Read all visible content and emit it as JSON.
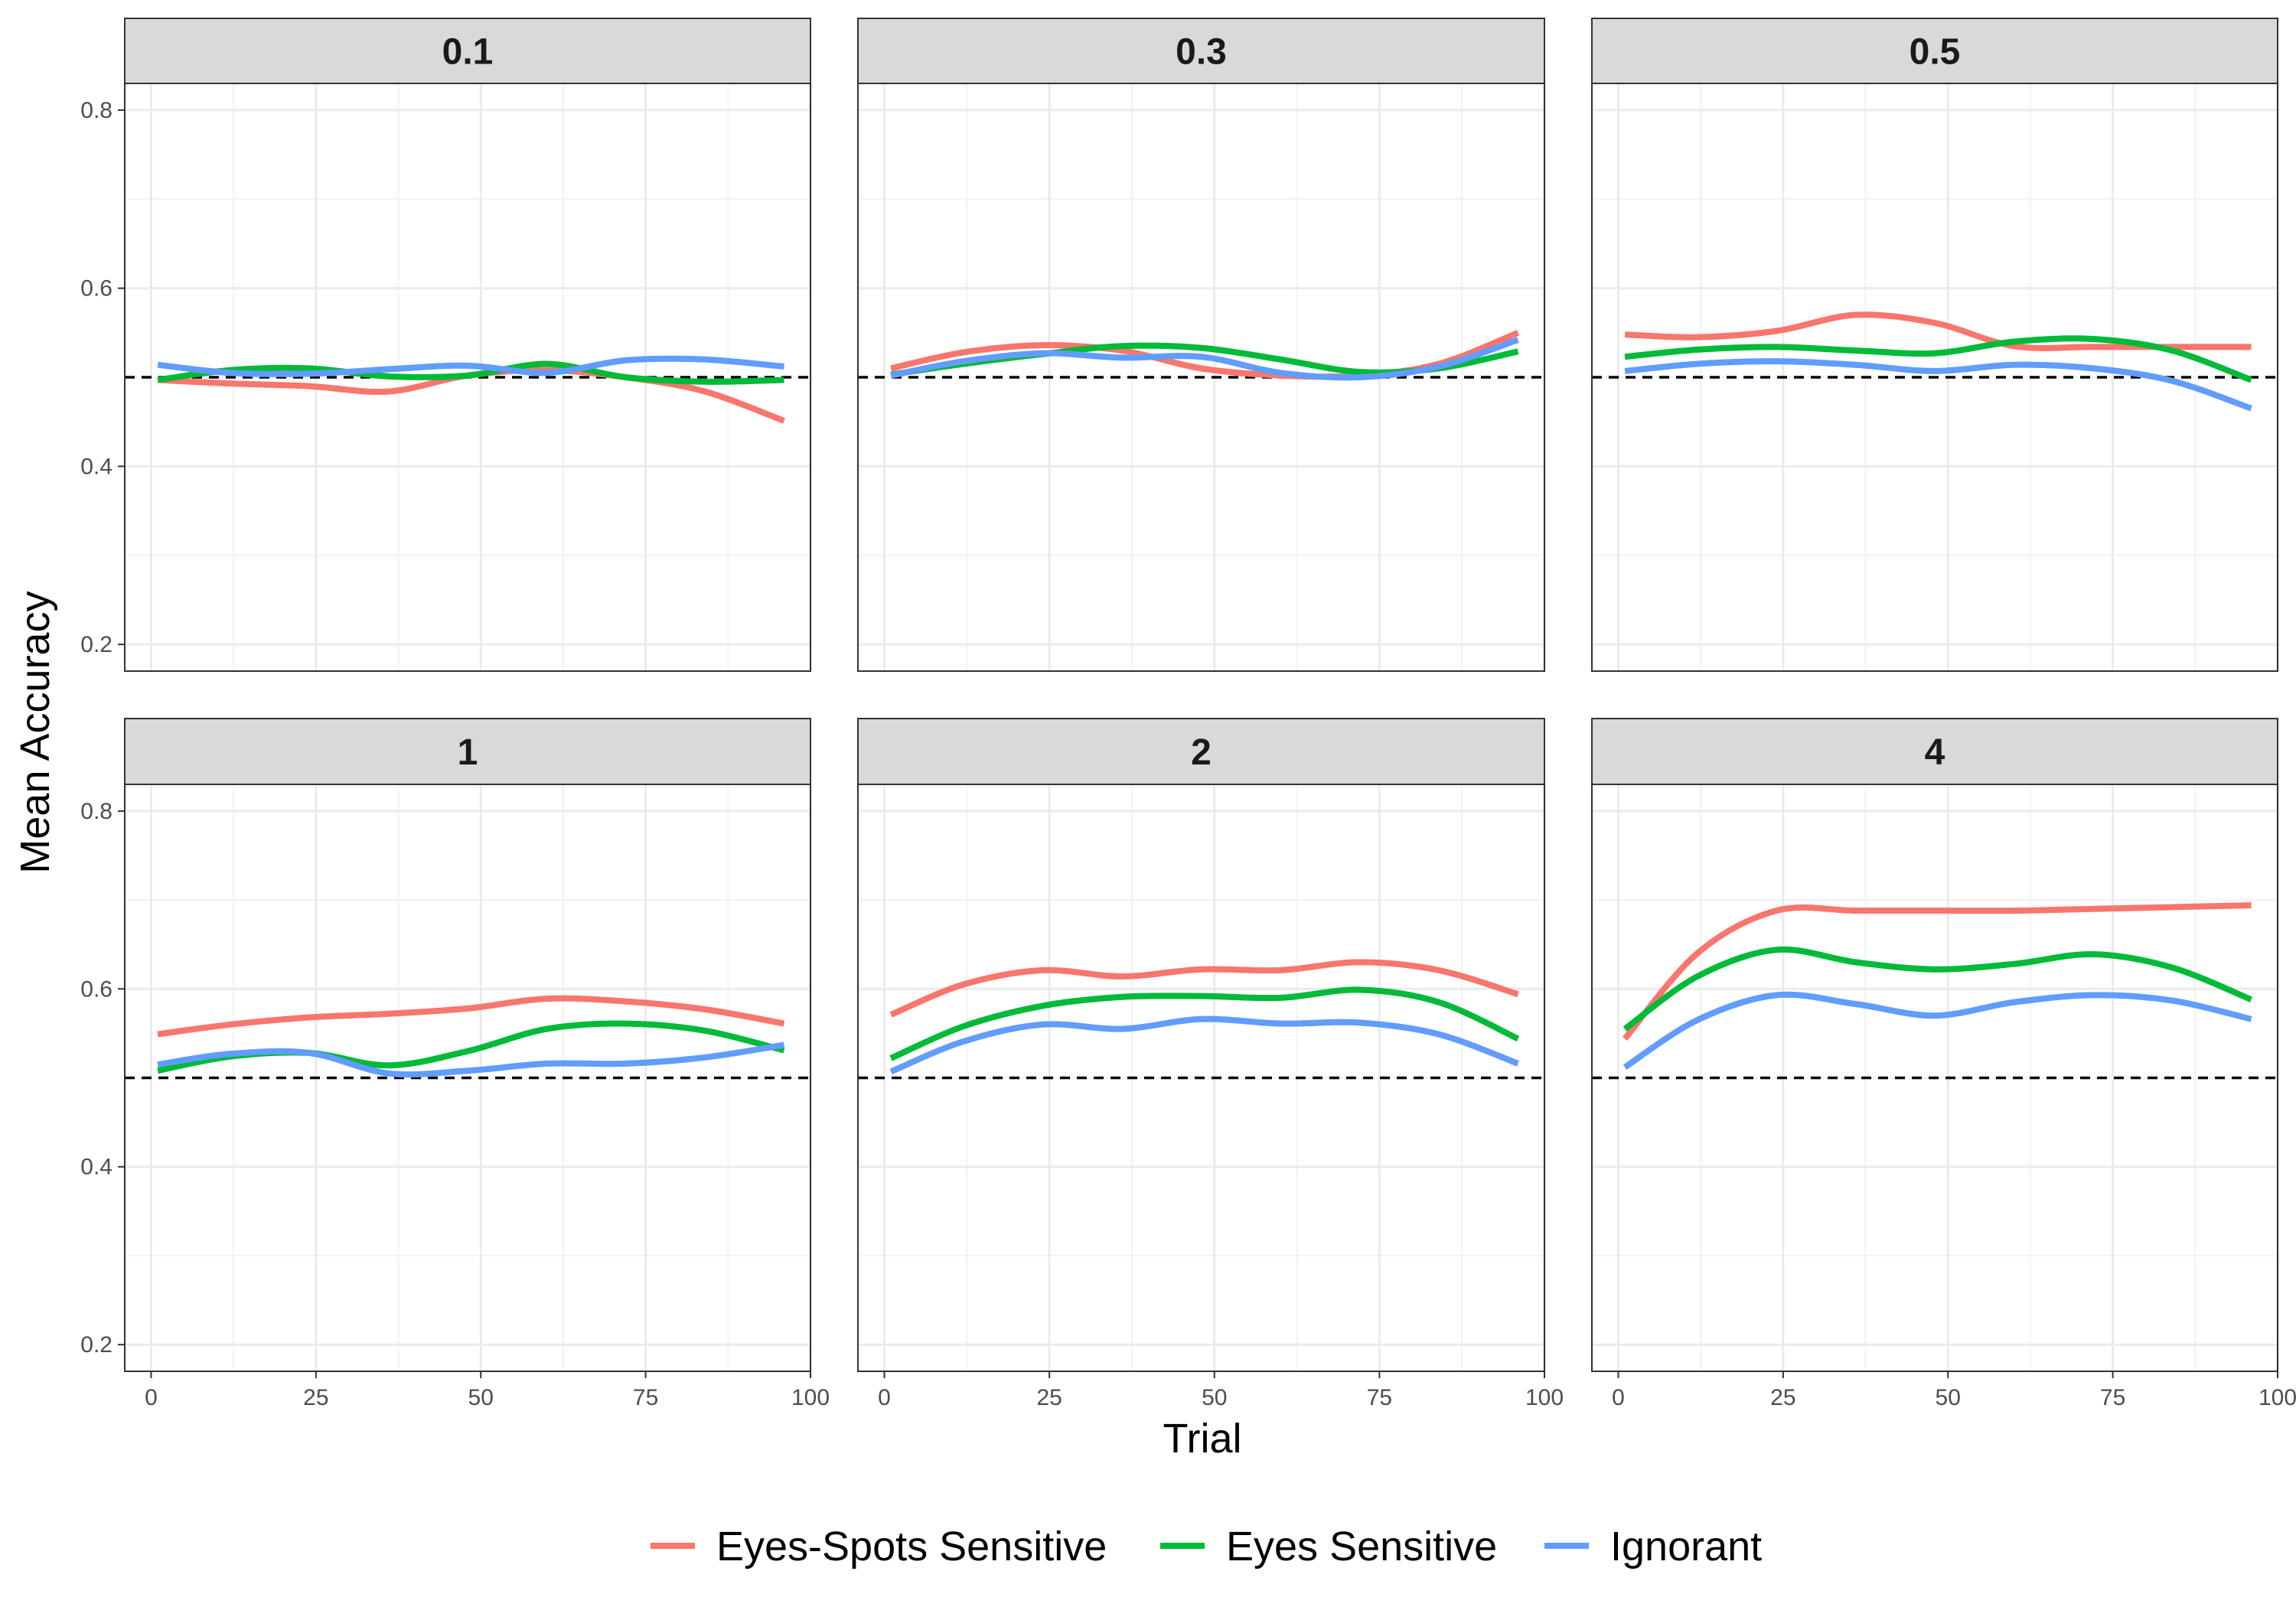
{
  "chart_data": {
    "type": "line",
    "xlabel": "Trial",
    "ylabel": "Mean Accuracy",
    "xlim": [
      -4,
      100
    ],
    "ylim": [
      0.17,
      0.83
    ],
    "x_ticks": [
      0,
      25,
      50,
      75,
      100
    ],
    "x_tick_labels": [
      "0",
      "25",
      "50",
      "75",
      "100"
    ],
    "y_ticks": [
      0.2,
      0.4,
      0.6,
      0.8
    ],
    "y_tick_labels": [
      "0.2",
      "0.4",
      "0.6",
      "0.8"
    ],
    "reference_line": {
      "y": 0.5,
      "style": "dashed",
      "color": "#000000"
    },
    "grid": true,
    "legend_position": "bottom",
    "series_legend": [
      {
        "name": "Eyes-Spots Sensitive",
        "color": "#F8766D"
      },
      {
        "name": "Eyes Sensitive",
        "color": "#00BA38"
      },
      {
        "name": "Ignorant",
        "color": "#619CFF"
      }
    ],
    "x": [
      1,
      12,
      24,
      36,
      48,
      60,
      72,
      84,
      96
    ],
    "panels": [
      {
        "title": "0.1",
        "series": [
          {
            "name": "Eyes-Spots Sensitive",
            "values": [
              0.497,
              0.493,
              0.49,
              0.484,
              0.502,
              0.508,
              0.5,
              0.484,
              0.451
            ]
          },
          {
            "name": "Eyes Sensitive",
            "values": [
              0.497,
              0.508,
              0.51,
              0.501,
              0.502,
              0.515,
              0.5,
              0.495,
              0.497
            ]
          },
          {
            "name": "Ignorant",
            "values": [
              0.514,
              0.505,
              0.504,
              0.509,
              0.513,
              0.505,
              0.519,
              0.52,
              0.512
            ]
          }
        ]
      },
      {
        "title": "0.3",
        "series": [
          {
            "name": "Eyes-Spots Sensitive",
            "values": [
              0.51,
              0.528,
              0.536,
              0.53,
              0.51,
              0.502,
              0.502,
              0.515,
              0.55
            ]
          },
          {
            "name": "Eyes Sensitive",
            "values": [
              0.503,
              0.515,
              0.526,
              0.535,
              0.533,
              0.52,
              0.506,
              0.51,
              0.529
            ]
          },
          {
            "name": "Ignorant",
            "values": [
              0.502,
              0.518,
              0.527,
              0.522,
              0.523,
              0.505,
              0.5,
              0.512,
              0.542
            ]
          }
        ]
      },
      {
        "title": "0.5",
        "series": [
          {
            "name": "Eyes-Spots Sensitive",
            "values": [
              0.548,
              0.545,
              0.552,
              0.57,
              0.561,
              0.535,
              0.534,
              0.534,
              0.534
            ]
          },
          {
            "name": "Eyes Sensitive",
            "values": [
              0.523,
              0.531,
              0.534,
              0.53,
              0.527,
              0.54,
              0.543,
              0.53,
              0.497
            ]
          },
          {
            "name": "Ignorant",
            "values": [
              0.507,
              0.515,
              0.518,
              0.514,
              0.507,
              0.514,
              0.51,
              0.496,
              0.465
            ]
          }
        ]
      },
      {
        "title": "1",
        "series": [
          {
            "name": "Eyes-Spots Sensitive",
            "values": [
              0.549,
              0.56,
              0.568,
              0.572,
              0.578,
              0.589,
              0.586,
              0.577,
              0.561
            ]
          },
          {
            "name": "Eyes Sensitive",
            "values": [
              0.508,
              0.524,
              0.528,
              0.514,
              0.53,
              0.555,
              0.561,
              0.553,
              0.531
            ]
          },
          {
            "name": "Ignorant",
            "values": [
              0.515,
              0.527,
              0.528,
              0.505,
              0.508,
              0.516,
              0.516,
              0.523,
              0.537
            ]
          }
        ]
      },
      {
        "title": "2",
        "series": [
          {
            "name": "Eyes-Spots Sensitive",
            "values": [
              0.571,
              0.605,
              0.621,
              0.614,
              0.622,
              0.621,
              0.63,
              0.621,
              0.594
            ]
          },
          {
            "name": "Eyes Sensitive",
            "values": [
              0.522,
              0.558,
              0.581,
              0.591,
              0.592,
              0.59,
              0.599,
              0.585,
              0.544
            ]
          },
          {
            "name": "Ignorant",
            "values": [
              0.507,
              0.541,
              0.56,
              0.555,
              0.566,
              0.561,
              0.562,
              0.549,
              0.516
            ]
          }
        ]
      },
      {
        "title": "4",
        "series": [
          {
            "name": "Eyes-Spots Sensitive",
            "values": [
              0.544,
              0.64,
              0.688,
              0.688,
              0.688,
              0.688,
              0.69,
              0.692,
              0.694
            ]
          },
          {
            "name": "Eyes Sensitive",
            "values": [
              0.555,
              0.614,
              0.644,
              0.63,
              0.622,
              0.628,
              0.639,
              0.624,
              0.588
            ]
          },
          {
            "name": "Ignorant",
            "values": [
              0.512,
              0.565,
              0.593,
              0.583,
              0.57,
              0.585,
              0.593,
              0.587,
              0.566
            ]
          }
        ]
      }
    ]
  }
}
